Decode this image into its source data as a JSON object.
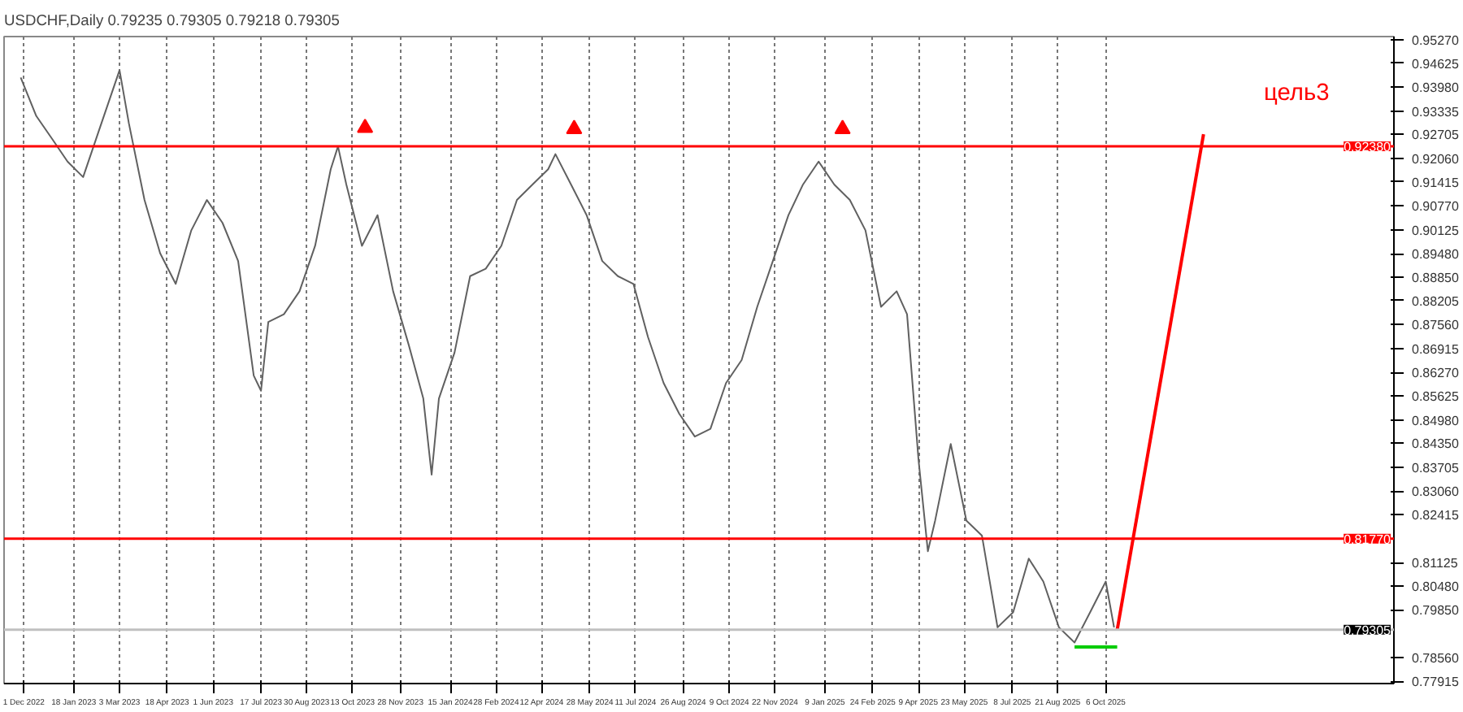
{
  "chart_data": {
    "type": "line",
    "title": "USDCHF,Daily 0.79235 0.79305 0.79218 0.79305",
    "xlim": [
      "2022-11-12",
      "2026-07-10"
    ],
    "xticks": [
      {
        "value": "2022-12-01",
        "label": "1 Dec 2022"
      },
      {
        "value": "2023-01-18",
        "label": "18 Jan 2023"
      },
      {
        "value": "2023-03-03",
        "label": "3 Mar 2023"
      },
      {
        "value": "2023-04-18",
        "label": "18 Apr 2023"
      },
      {
        "value": "2023-06-01",
        "label": "1 Jun 2023"
      },
      {
        "value": "2023-07-17",
        "label": "17 Jul 2023"
      },
      {
        "value": "2023-08-30",
        "label": "30 Aug 2023"
      },
      {
        "value": "2023-10-13",
        "label": "13 Oct 2023"
      },
      {
        "value": "2023-11-28",
        "label": "28 Nov 2023"
      },
      {
        "value": "2024-01-15",
        "label": "15 Jan 2024"
      },
      {
        "value": "2024-02-28",
        "label": "28 Feb 2024"
      },
      {
        "value": "2024-04-12",
        "label": "12 Apr 2024"
      },
      {
        "value": "2024-05-28",
        "label": "28 May 2024"
      },
      {
        "value": "2024-07-11",
        "label": "11 Jul 2024"
      },
      {
        "value": "2024-08-26",
        "label": "26 Aug 2024"
      },
      {
        "value": "2024-10-09",
        "label": "9 Oct 2024"
      },
      {
        "value": "2024-11-22",
        "label": "22 Nov 2024"
      },
      {
        "value": "2025-01-09",
        "label": "9 Jan 2025"
      },
      {
        "value": "2025-02-24",
        "label": "24 Feb 2025"
      },
      {
        "value": "2025-04-09",
        "label": "9 Apr 2025"
      },
      {
        "value": "2025-05-23",
        "label": "23 May 2025"
      },
      {
        "value": "2025-07-08",
        "label": "8 Jul 2025"
      },
      {
        "value": "2025-08-21",
        "label": "21 Aug 2025"
      },
      {
        "value": "2025-10-06",
        "label": "6 Oct 2025"
      }
    ],
    "ylim": [
      0.7785,
      0.9535
    ],
    "yticks": [
      {
        "value": 0.9527,
        "label": "0.95270"
      },
      {
        "value": 0.94625,
        "label": "0.94625"
      },
      {
        "value": 0.9398,
        "label": "0.93980"
      },
      {
        "value": 0.93335,
        "label": "0.93335"
      },
      {
        "value": 0.92705,
        "label": "0.92705"
      },
      {
        "value": 0.9206,
        "label": "0.92060"
      },
      {
        "value": 0.91415,
        "label": "0.91415"
      },
      {
        "value": 0.9077,
        "label": "0.90770"
      },
      {
        "value": 0.90125,
        "label": "0.90125"
      },
      {
        "value": 0.8948,
        "label": "0.89480"
      },
      {
        "value": 0.8885,
        "label": "0.88850"
      },
      {
        "value": 0.88205,
        "label": "0.88205"
      },
      {
        "value": 0.8756,
        "label": "0.87560"
      },
      {
        "value": 0.86915,
        "label": "0.86915"
      },
      {
        "value": 0.8627,
        "label": "0.86270"
      },
      {
        "value": 0.85625,
        "label": "0.85625"
      },
      {
        "value": 0.8498,
        "label": "0.84980"
      },
      {
        "value": 0.8435,
        "label": "0.84350"
      },
      {
        "value": 0.83705,
        "label": "0.83705"
      },
      {
        "value": 0.8306,
        "label": "0.83060"
      },
      {
        "value": 0.82415,
        "label": "0.82415"
      },
      {
        "value": 0.81125,
        "label": "0.81125"
      },
      {
        "value": 0.8048,
        "label": "0.80480"
      },
      {
        "value": 0.7985,
        "label": "0.79850"
      },
      {
        "value": 0.7856,
        "label": "0.78560"
      },
      {
        "value": 0.77915,
        "label": "0.77915"
      }
    ],
    "grid": "x",
    "line_style": "solid",
    "ref_lines": [
      {
        "axis": "y",
        "value": 0.9238,
        "label": "0.92380",
        "color": "#ff0000"
      },
      {
        "axis": "y",
        "value": 0.8177,
        "label": "0.81770",
        "color": "#ff0000"
      },
      {
        "axis": "y",
        "value": 0.79305,
        "label": "0.79305",
        "color": "#c0c0c0"
      }
    ],
    "annotations": [
      "цель3"
    ],
    "series": [
      {
        "color": "#606060",
        "x": [
          "2022-11-28",
          "2022-12-13",
          "2022-12-28",
          "2023-01-12",
          "2023-01-27",
          "2023-02-11",
          "2023-03-03",
          "2023-03-12",
          "2023-03-27",
          "2023-04-11",
          "2023-04-26",
          "2023-05-11",
          "2023-05-26",
          "2023-06-10",
          "2023-06-25",
          "2023-07-10",
          "2023-07-17",
          "2023-07-24",
          "2023-08-08",
          "2023-08-23",
          "2023-09-07",
          "2023-09-22",
          "2023-09-29",
          "2023-10-07",
          "2023-10-22",
          "2023-11-06",
          "2023-11-21",
          "2023-12-06",
          "2023-12-20",
          "2023-12-28",
          "2024-01-04",
          "2024-01-19",
          "2024-02-03",
          "2024-02-18",
          "2024-03-04",
          "2024-03-19",
          "2024-04-03",
          "2024-04-18",
          "2024-04-25",
          "2024-05-10",
          "2024-05-25",
          "2024-06-09",
          "2024-06-24",
          "2024-07-09",
          "2024-07-23",
          "2024-08-07",
          "2024-08-22",
          "2024-09-06",
          "2024-09-21",
          "2024-10-06",
          "2024-10-21",
          "2024-11-05",
          "2024-11-20",
          "2024-12-05",
          "2024-12-19",
          "2025-01-03",
          "2025-01-18",
          "2025-02-02",
          "2025-02-17",
          "2025-03-04",
          "2025-03-19",
          "2025-03-29",
          "2025-04-09",
          "2025-04-18",
          "2025-04-25",
          "2025-05-10",
          "2025-05-25",
          "2025-06-09",
          "2025-06-24",
          "2025-07-09",
          "2025-07-24",
          "2025-08-07",
          "2025-08-22",
          "2025-09-06",
          "2025-09-21",
          "2025-10-06",
          "2025-10-14"
        ],
        "values": [
          0.9424,
          0.932,
          0.9259,
          0.9197,
          0.9155,
          0.9279,
          0.9444,
          0.93,
          0.9093,
          0.8949,
          0.8866,
          0.9011,
          0.9093,
          0.9031,
          0.8928,
          0.8618,
          0.8577,
          0.8763,
          0.8784,
          0.8846,
          0.8969,
          0.9176,
          0.9238,
          0.9135,
          0.8969,
          0.9052,
          0.8846,
          0.8701,
          0.8556,
          0.835,
          0.8556,
          0.868,
          0.8887,
          0.8907,
          0.8969,
          0.9093,
          0.9135,
          0.9176,
          0.9217,
          0.9135,
          0.9052,
          0.8928,
          0.8887,
          0.8866,
          0.8722,
          0.8598,
          0.8515,
          0.8453,
          0.8474,
          0.8598,
          0.866,
          0.8804,
          0.8928,
          0.9052,
          0.9135,
          0.9197,
          0.9135,
          0.9093,
          0.9011,
          0.8804,
          0.8846,
          0.8784,
          0.8391,
          0.8143,
          0.8226,
          0.8433,
          0.8226,
          0.8185,
          0.7937,
          0.7978,
          0.8123,
          0.8061,
          0.7937,
          0.7896,
          0.7978,
          0.8061,
          0.7937
        ]
      },
      {
        "type": "line",
        "color": "#00cc00",
        "x": [
          "2025-09-06",
          "2025-10-17"
        ],
        "values": [
          0.7884,
          0.7884
        ]
      },
      {
        "type": "line",
        "color": "#ff0000",
        "x": [
          "2025-10-17",
          "2026-01-08"
        ],
        "values": [
          0.793,
          0.9271
        ]
      },
      {
        "type": "scatter",
        "marker": "triangle",
        "color": "#ff0000",
        "x": [
          "2023-10-25",
          "2024-05-13",
          "2025-01-26"
        ],
        "values": [
          0.9288,
          0.9285,
          0.9285
        ]
      }
    ]
  }
}
